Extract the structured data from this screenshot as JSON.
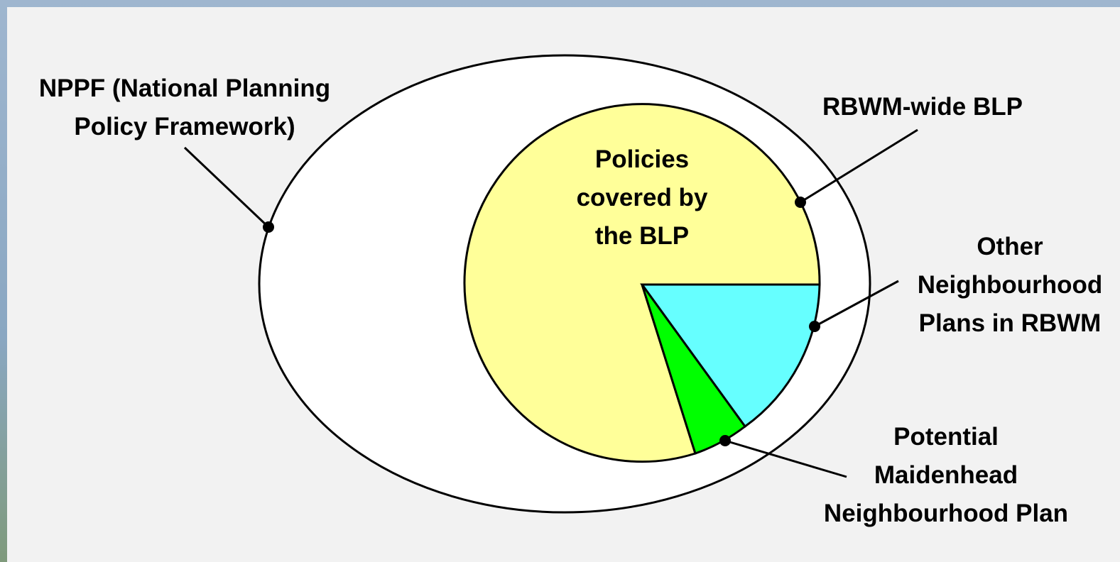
{
  "labels": {
    "nppf_line1": "NPPF (National Planning",
    "nppf_line2": "Policy Framework)",
    "rbwm_wide": "RBWM-wide BLP",
    "policies_line1": "Policies",
    "policies_line2": "covered by",
    "policies_line3": "the BLP",
    "other_line1": "Other",
    "other_line2": "Neighbourhood",
    "other_line3": "Plans in RBWM",
    "potential_line1": "Potential",
    "potential_line2": "Maidenhead",
    "potential_line3": "Neighbourhood Plan"
  },
  "colors": {
    "panel_background": "#f2f2f2",
    "outer_ellipse_fill": "#ffffff",
    "blp_fill": "#ffff99",
    "other_neighbourhood_fill": "#66ffff",
    "maidenhead_fill": "#00ff00",
    "outline": "#000000"
  }
}
